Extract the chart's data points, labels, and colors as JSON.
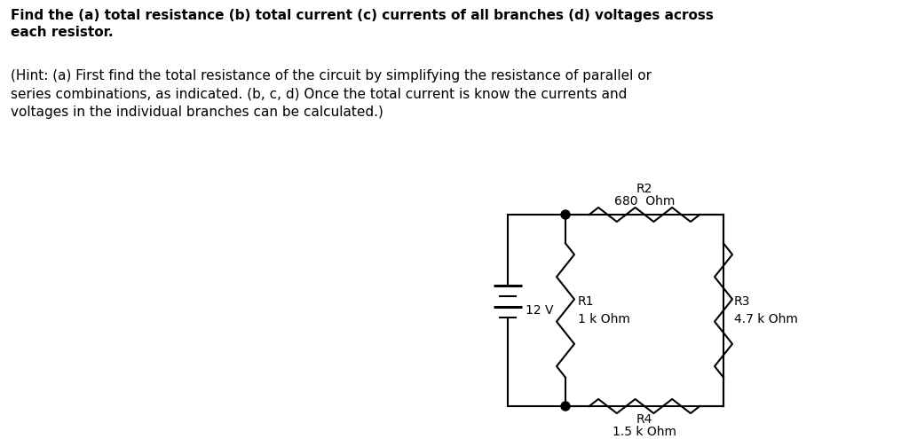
{
  "title_bold": "Find the (a) total resistance (b) total current (c) currents of all branches (d) voltages across\neach resistor.",
  "hint_text": "(Hint: (a) First find the total resistance of the circuit by simplifying the resistance of parallel or\nseries combinations, as indicated. (b, c, d) Once the total current is know the currents and\nvoltages in the individual branches can be calculated.)",
  "voltage": "12 V",
  "R1_label": "R1",
  "R1_value": "1 k Ohm",
  "R2_label": "R2",
  "R2_value": "680  Ohm",
  "R3_label": "R3",
  "R3_value": "4.7 k Ohm",
  "R4_label": "R4",
  "R4_value": "1.5 k Ohm",
  "bg_color": "#ffffff",
  "line_color": "#000000",
  "text_color": "#000000"
}
